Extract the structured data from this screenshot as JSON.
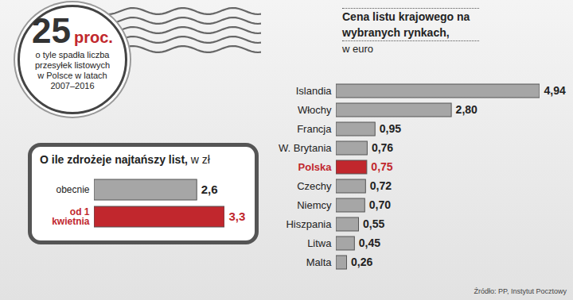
{
  "callout": {
    "value": 25,
    "unit": "proc.",
    "text": "o tyle spadła liczba przesyłek listowych w Polsce w latach 2007–2016"
  },
  "source": "Źródło: PP, Instytut Pocztowy",
  "chart_data": [
    {
      "type": "bar",
      "title": "Cena listu krajowego na wybranych rynkach,",
      "subtitle": "w euro",
      "orientation": "horizontal",
      "categories": [
        "Islandia",
        "Włochy",
        "Francja",
        "W. Brytania",
        "Polska",
        "Czechy",
        "Niemcy",
        "Hiszpania",
        "Litwa",
        "Malta"
      ],
      "values": [
        4.94,
        2.8,
        0.95,
        0.76,
        0.75,
        0.72,
        0.7,
        0.55,
        0.45,
        0.26
      ],
      "value_labels": [
        "4,94",
        "2,80",
        "0,95",
        "0,76",
        "0,75",
        "0,72",
        "0,70",
        "0,55",
        "0,45",
        "0,26"
      ],
      "colors": [
        "#a6a6a6",
        "#a6a6a6",
        "#a6a6a6",
        "#a6a6a6",
        "#c1272d",
        "#a6a6a6",
        "#a6a6a6",
        "#a6a6a6",
        "#a6a6a6",
        "#a6a6a6"
      ],
      "data_labels": true,
      "tick_labels": "y"
    },
    {
      "type": "bar",
      "title": "O ile zdrożeje najtańszy list,",
      "subtitle": "w zł",
      "orientation": "horizontal",
      "categories": [
        "obecnie",
        "od 1 kwietnia"
      ],
      "values": [
        2.6,
        3.3
      ],
      "value_labels": [
        "2,6",
        "3,3"
      ],
      "colors": [
        "#a6a6a6",
        "#c1272d"
      ],
      "data_labels": true,
      "tick_labels": "y"
    }
  ]
}
